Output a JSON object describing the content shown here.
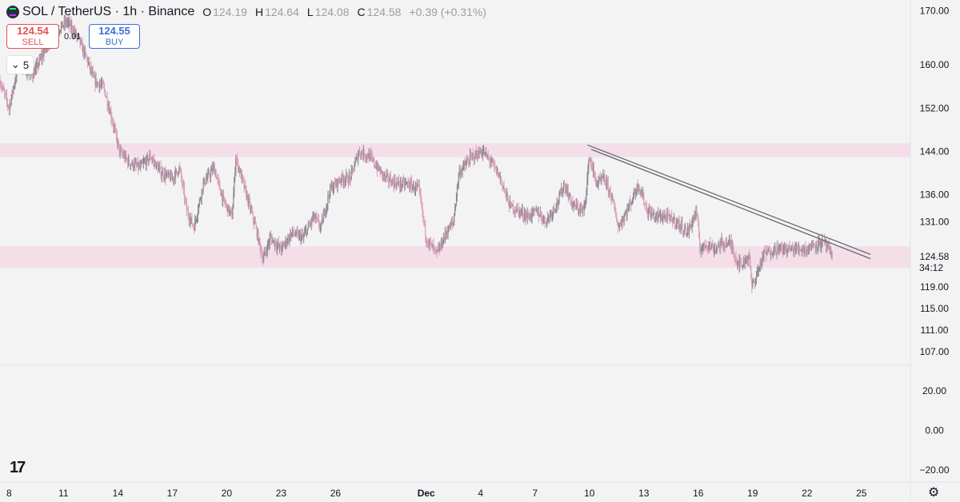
{
  "header": {
    "symbol": "SOL / TetherUS · 1h · Binance",
    "open_label": "O",
    "open": "124.19",
    "high_label": "H",
    "high": "124.64",
    "low_label": "L",
    "low": "124.08",
    "close_label": "C",
    "close": "124.58",
    "change": "+0.39 (+0.31%)"
  },
  "trade": {
    "sell_price": "124.54",
    "sell_label": "SELL",
    "spread": "0.01",
    "buy_price": "124.55",
    "buy_label": "BUY"
  },
  "indicator_toggle": {
    "count": "5",
    "icon": "chevron-down-icon"
  },
  "colors": {
    "background": "#f3f3f3",
    "zone": "#f3dbe6",
    "candle": "#dba0b8",
    "candle_dark": "#8d8a94",
    "trendline": "#6b6b70",
    "text": "#131722",
    "sell": "#e35252",
    "buy": "#3b6fd9"
  },
  "chart_data": {
    "type": "candlestick",
    "title": "SOL / TetherUS · 1h · Binance",
    "x_ticks": [
      "8",
      "11",
      "14",
      "17",
      "20",
      "23",
      "26",
      "Dec",
      "4",
      "7",
      "10",
      "13",
      "16",
      "19",
      "22",
      "25"
    ],
    "x_tick_days": [
      8,
      11,
      14,
      17,
      20,
      23,
      26,
      31,
      34,
      37,
      40,
      43,
      46,
      49,
      52,
      55
    ],
    "x_range_days": [
      7.5,
      57.7
    ],
    "price_ticks": [
      "170.00",
      "160.00",
      "152.00",
      "144.00",
      "136.00",
      "131.00",
      "124.58",
      "119.00",
      "115.00",
      "111.00",
      "107.00"
    ],
    "price_tick_values": [
      170,
      160,
      152,
      144,
      136,
      131,
      124.58,
      119,
      115,
      111,
      107
    ],
    "price_range": [
      104.5,
      172
    ],
    "last_price_label": "124.58",
    "countdown": "34:12",
    "price_path": [
      [
        7.5,
        157
      ],
      [
        8.0,
        152
      ],
      [
        8.5,
        160
      ],
      [
        9.3,
        158
      ],
      [
        10.0,
        163
      ],
      [
        10.5,
        166
      ],
      [
        11.2,
        168
      ],
      [
        11.8,
        165
      ],
      [
        12.3,
        161
      ],
      [
        12.7,
        157
      ],
      [
        13.2,
        156
      ],
      [
        13.6,
        151
      ],
      [
        14.1,
        144
      ],
      [
        14.6,
        142
      ],
      [
        15.2,
        141
      ],
      [
        15.8,
        143
      ],
      [
        16.4,
        140
      ],
      [
        17.0,
        139
      ],
      [
        17.4,
        141
      ],
      [
        17.8,
        133
      ],
      [
        18.2,
        130
      ],
      [
        18.7,
        138
      ],
      [
        19.3,
        141
      ],
      [
        19.8,
        135
      ],
      [
        20.3,
        132
      ],
      [
        20.5,
        143
      ],
      [
        21.0,
        137
      ],
      [
        21.6,
        130
      ],
      [
        22.0,
        124
      ],
      [
        22.4,
        128
      ],
      [
        23.0,
        126
      ],
      [
        23.6,
        129
      ],
      [
        24.2,
        128
      ],
      [
        24.8,
        132
      ],
      [
        25.2,
        130
      ],
      [
        25.7,
        137
      ],
      [
        26.3,
        139
      ],
      [
        26.8,
        139
      ],
      [
        27.3,
        144
      ],
      [
        27.9,
        143
      ],
      [
        28.3,
        141
      ],
      [
        28.8,
        139
      ],
      [
        29.4,
        138
      ],
      [
        30.0,
        138
      ],
      [
        30.6,
        137
      ],
      [
        31.0,
        128
      ],
      [
        31.6,
        125
      ],
      [
        32.1,
        129
      ],
      [
        32.5,
        131
      ],
      [
        32.8,
        140
      ],
      [
        33.5,
        143
      ],
      [
        34.1,
        144
      ],
      [
        34.6,
        142
      ],
      [
        35.1,
        139
      ],
      [
        35.6,
        134
      ],
      [
        36.1,
        133
      ],
      [
        36.6,
        132
      ],
      [
        37.1,
        133
      ],
      [
        37.6,
        131
      ],
      [
        38.3,
        135
      ],
      [
        38.6,
        138
      ],
      [
        39.1,
        134
      ],
      [
        39.7,
        133
      ],
      [
        40.0,
        143
      ],
      [
        40.4,
        138
      ],
      [
        40.8,
        139
      ],
      [
        41.2,
        136
      ],
      [
        41.6,
        130
      ],
      [
        42.2,
        134
      ],
      [
        42.7,
        138
      ],
      [
        43.2,
        133
      ],
      [
        43.6,
        132
      ],
      [
        44.2,
        132
      ],
      [
        44.8,
        131
      ],
      [
        45.4,
        129
      ],
      [
        45.9,
        133
      ],
      [
        46.1,
        126
      ],
      [
        46.5,
        127
      ],
      [
        46.9,
        126
      ],
      [
        47.3,
        127
      ],
      [
        47.8,
        127
      ],
      [
        48.1,
        124
      ],
      [
        48.4,
        123
      ],
      [
        48.8,
        125
      ],
      [
        48.95,
        119
      ],
      [
        49.2,
        121
      ],
      [
        49.6,
        125
      ],
      [
        50.2,
        126
      ],
      [
        50.8,
        126
      ],
      [
        51.4,
        126
      ],
      [
        52.0,
        126
      ],
      [
        52.5,
        127
      ],
      [
        53.0,
        127
      ],
      [
        53.3,
        125
      ],
      [
        53.4,
        124.6
      ]
    ],
    "zones": [
      {
        "name": "resistance",
        "low": 143,
        "high": 145.5
      },
      {
        "name": "support",
        "low": 122.5,
        "high": 126.5
      }
    ],
    "trendlines": [
      {
        "from": [
          39.9,
          145.2
        ],
        "to": [
          55.5,
          125.0
        ]
      },
      {
        "from": [
          40.1,
          144.4
        ],
        "to": [
          55.5,
          124.2
        ]
      }
    ],
    "oscillator": {
      "ticks": [
        "20.00",
        "0.00",
        "−20.00"
      ],
      "tick_values": [
        20,
        0,
        -20
      ],
      "range": [
        -26,
        33
      ]
    }
  }
}
